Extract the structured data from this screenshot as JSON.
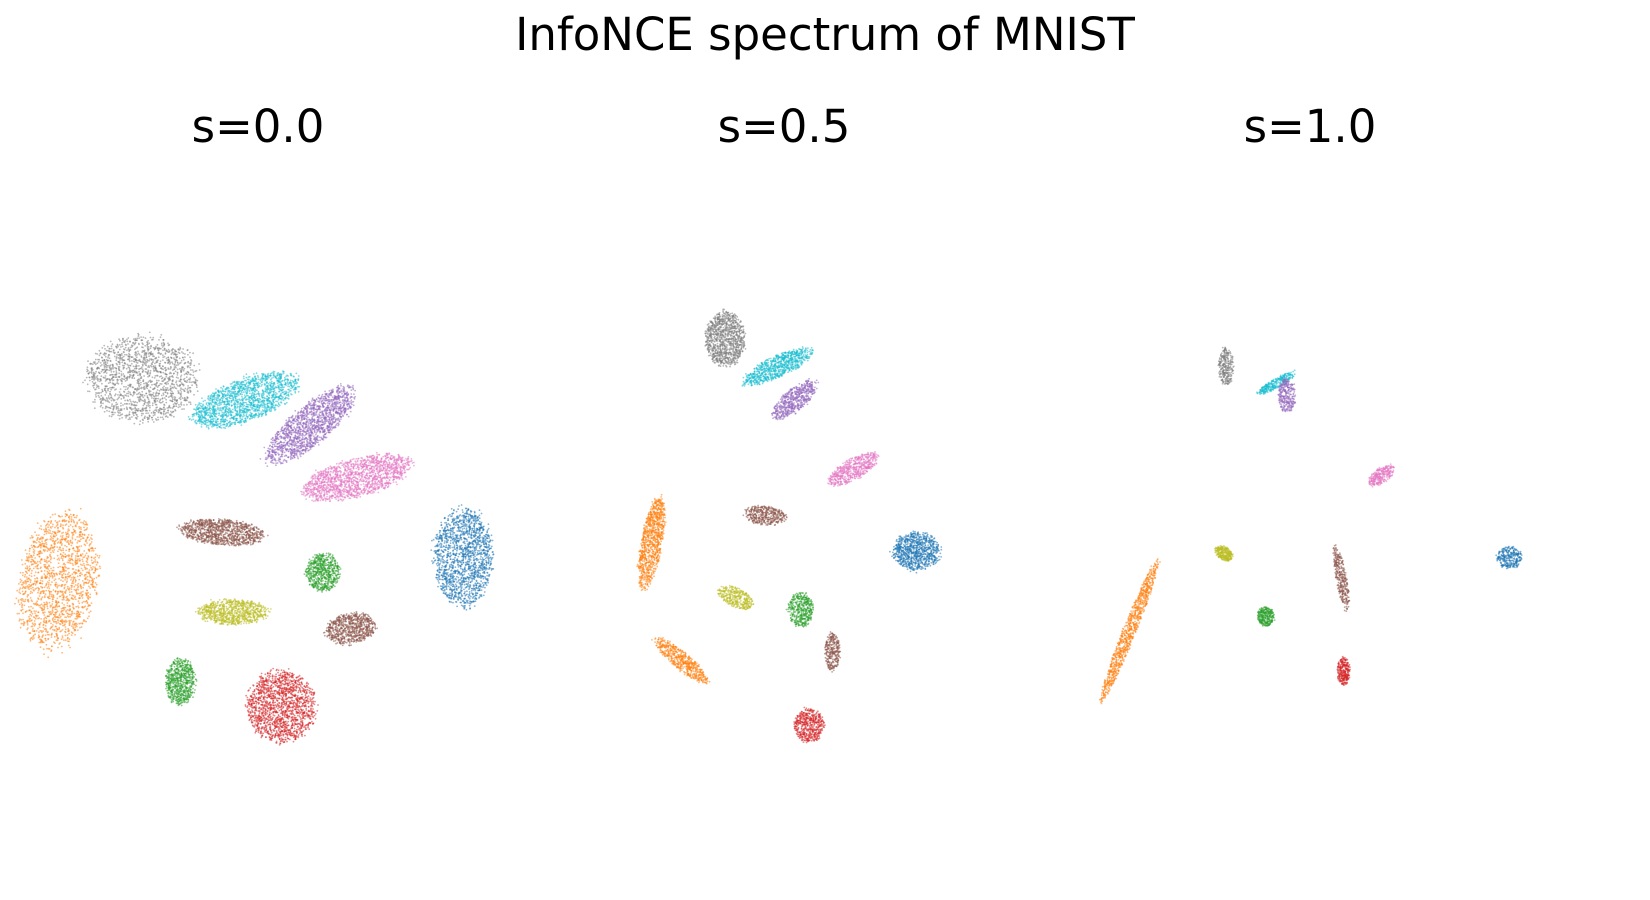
{
  "title": "InfoNCE spectrum of MNIST",
  "chart_data": [
    {
      "type": "scatter",
      "title": "s=0.0",
      "axes_visible": false,
      "series": [
        {
          "color": "#7f7f7f",
          "clusters": [
            {
              "center": [
                -0.55,
                0.6
              ],
              "spread": [
                0.26,
                0.2
              ],
              "angle": 0
            }
          ]
        },
        {
          "color": "#17becf",
          "clusters": [
            {
              "center": [
                -0.06,
                0.5
              ],
              "spread": [
                0.26,
                0.1
              ],
              "angle": 20
            }
          ]
        },
        {
          "color": "#9467bd",
          "clusters": [
            {
              "center": [
                0.25,
                0.38
              ],
              "spread": [
                0.26,
                0.09
              ],
              "angle": 40
            }
          ]
        },
        {
          "color": "#e377c2",
          "clusters": [
            {
              "center": [
                0.47,
                0.13
              ],
              "spread": [
                0.26,
                0.09
              ],
              "angle": 15
            }
          ]
        },
        {
          "color": "#1f77b4",
          "clusters": [
            {
              "center": [
                0.98,
                -0.25
              ],
              "spread": [
                0.14,
                0.23
              ],
              "angle": 0
            }
          ]
        },
        {
          "color": "#ff7f0e",
          "clusters": [
            {
              "center": [
                -0.95,
                -0.36
              ],
              "spread": [
                0.18,
                0.33
              ],
              "angle": -10
            }
          ]
        },
        {
          "color": "#8c564b",
          "clusters": [
            {
              "center": [
                -0.17,
                -0.13
              ],
              "spread": [
                0.2,
                0.06
              ],
              "angle": -5
            },
            {
              "center": [
                0.44,
                -0.59
              ],
              "spread": [
                0.12,
                0.07
              ],
              "angle": 10
            }
          ]
        },
        {
          "color": "#2ca02c",
          "clusters": [
            {
              "center": [
                0.31,
                -0.32
              ],
              "spread": [
                0.08,
                0.09
              ],
              "angle": 0
            },
            {
              "center": [
                -0.37,
                -0.84
              ],
              "spread": [
                0.07,
                0.11
              ],
              "angle": 0
            }
          ]
        },
        {
          "color": "#bcbd22",
          "clusters": [
            {
              "center": [
                -0.12,
                -0.51
              ],
              "spread": [
                0.16,
                0.06
              ],
              "angle": 0
            }
          ]
        },
        {
          "color": "#d62728",
          "clusters": [
            {
              "center": [
                0.11,
                -0.96
              ],
              "spread": [
                0.16,
                0.17
              ],
              "angle": 0
            }
          ]
        }
      ]
    },
    {
      "type": "scatter",
      "title": "s=0.5",
      "axes_visible": false,
      "series": [
        {
          "color": "#7f7f7f",
          "clusters": [
            {
              "center": [
                -0.28,
                0.79
              ],
              "spread": [
                0.09,
                0.13
              ],
              "angle": 0
            }
          ]
        },
        {
          "color": "#17becf",
          "clusters": [
            {
              "center": [
                -0.03,
                0.66
              ],
              "spread": [
                0.18,
                0.05
              ],
              "angle": 25
            }
          ]
        },
        {
          "color": "#9467bd",
          "clusters": [
            {
              "center": [
                0.05,
                0.5
              ],
              "spread": [
                0.13,
                0.05
              ],
              "angle": 40
            }
          ]
        },
        {
          "color": "#e377c2",
          "clusters": [
            {
              "center": [
                0.33,
                0.17
              ],
              "spread": [
                0.13,
                0.05
              ],
              "angle": 30
            }
          ]
        },
        {
          "color": "#1f77b4",
          "clusters": [
            {
              "center": [
                0.63,
                -0.22
              ],
              "spread": [
                0.11,
                0.09
              ],
              "angle": 0
            }
          ]
        },
        {
          "color": "#ff7f0e",
          "clusters": [
            {
              "center": [
                -0.63,
                -0.18
              ],
              "spread": [
                0.05,
                0.22
              ],
              "angle": -10
            },
            {
              "center": [
                -0.49,
                -0.74
              ],
              "spread": [
                0.04,
                0.16
              ],
              "angle": 50
            }
          ]
        },
        {
          "color": "#8c564b",
          "clusters": [
            {
              "center": [
                -0.09,
                -0.05
              ],
              "spread": [
                0.1,
                0.045
              ],
              "angle": -5
            },
            {
              "center": [
                0.23,
                -0.7
              ],
              "spread": [
                0.035,
                0.09
              ],
              "angle": 0
            }
          ]
        },
        {
          "color": "#2ca02c",
          "clusters": [
            {
              "center": [
                0.08,
                -0.5
              ],
              "spread": [
                0.06,
                0.08
              ],
              "angle": 0
            }
          ]
        },
        {
          "color": "#bcbd22",
          "clusters": [
            {
              "center": [
                -0.23,
                -0.44
              ],
              "spread": [
                0.09,
                0.045
              ],
              "angle": -25
            }
          ]
        },
        {
          "color": "#d62728",
          "clusters": [
            {
              "center": [
                0.12,
                -1.05
              ],
              "spread": [
                0.07,
                0.08
              ],
              "angle": 0
            }
          ]
        }
      ]
    },
    {
      "type": "scatter",
      "title": "s=1.0",
      "axes_visible": false,
      "series": [
        {
          "color": "#7f7f7f",
          "clusters": [
            {
              "center": [
                -0.4,
                0.66
              ],
              "spread": [
                0.035,
                0.09
              ],
              "angle": 0
            }
          ]
        },
        {
          "color": "#17becf",
          "clusters": [
            {
              "center": [
                -0.16,
                0.58
              ],
              "spread": [
                0.1,
                0.022
              ],
              "angle": 30
            }
          ]
        },
        {
          "color": "#9467bd",
          "clusters": [
            {
              "center": [
                -0.11,
                0.52
              ],
              "spread": [
                0.04,
                0.08
              ],
              "angle": 0
            }
          ]
        },
        {
          "color": "#e377c2",
          "clusters": [
            {
              "center": [
                0.34,
                0.14
              ],
              "spread": [
                0.07,
                0.035
              ],
              "angle": 35
            }
          ]
        },
        {
          "color": "#1f77b4",
          "clusters": [
            {
              "center": [
                0.95,
                -0.25
              ],
              "spread": [
                0.06,
                0.05
              ],
              "angle": 0
            }
          ]
        },
        {
          "color": "#ff7f0e",
          "clusters": [
            {
              "center": [
                -0.86,
                -0.6
              ],
              "spread": [
                0.03,
                0.36
              ],
              "angle": -22
            }
          ]
        },
        {
          "color": "#8c564b",
          "clusters": [
            {
              "center": [
                0.15,
                -0.35
              ],
              "spread": [
                0.025,
                0.15
              ],
              "angle": 10
            }
          ]
        },
        {
          "color": "#2ca02c",
          "clusters": [
            {
              "center": [
                -0.21,
                -0.53
              ],
              "spread": [
                0.04,
                0.045
              ],
              "angle": 0
            }
          ]
        },
        {
          "color": "#bcbd22",
          "clusters": [
            {
              "center": [
                -0.41,
                -0.23
              ],
              "spread": [
                0.045,
                0.03
              ],
              "angle": -35
            }
          ]
        },
        {
          "color": "#d62728",
          "clusters": [
            {
              "center": [
                0.16,
                -0.79
              ],
              "spread": [
                0.03,
                0.065
              ],
              "angle": 0
            }
          ]
        }
      ]
    }
  ]
}
